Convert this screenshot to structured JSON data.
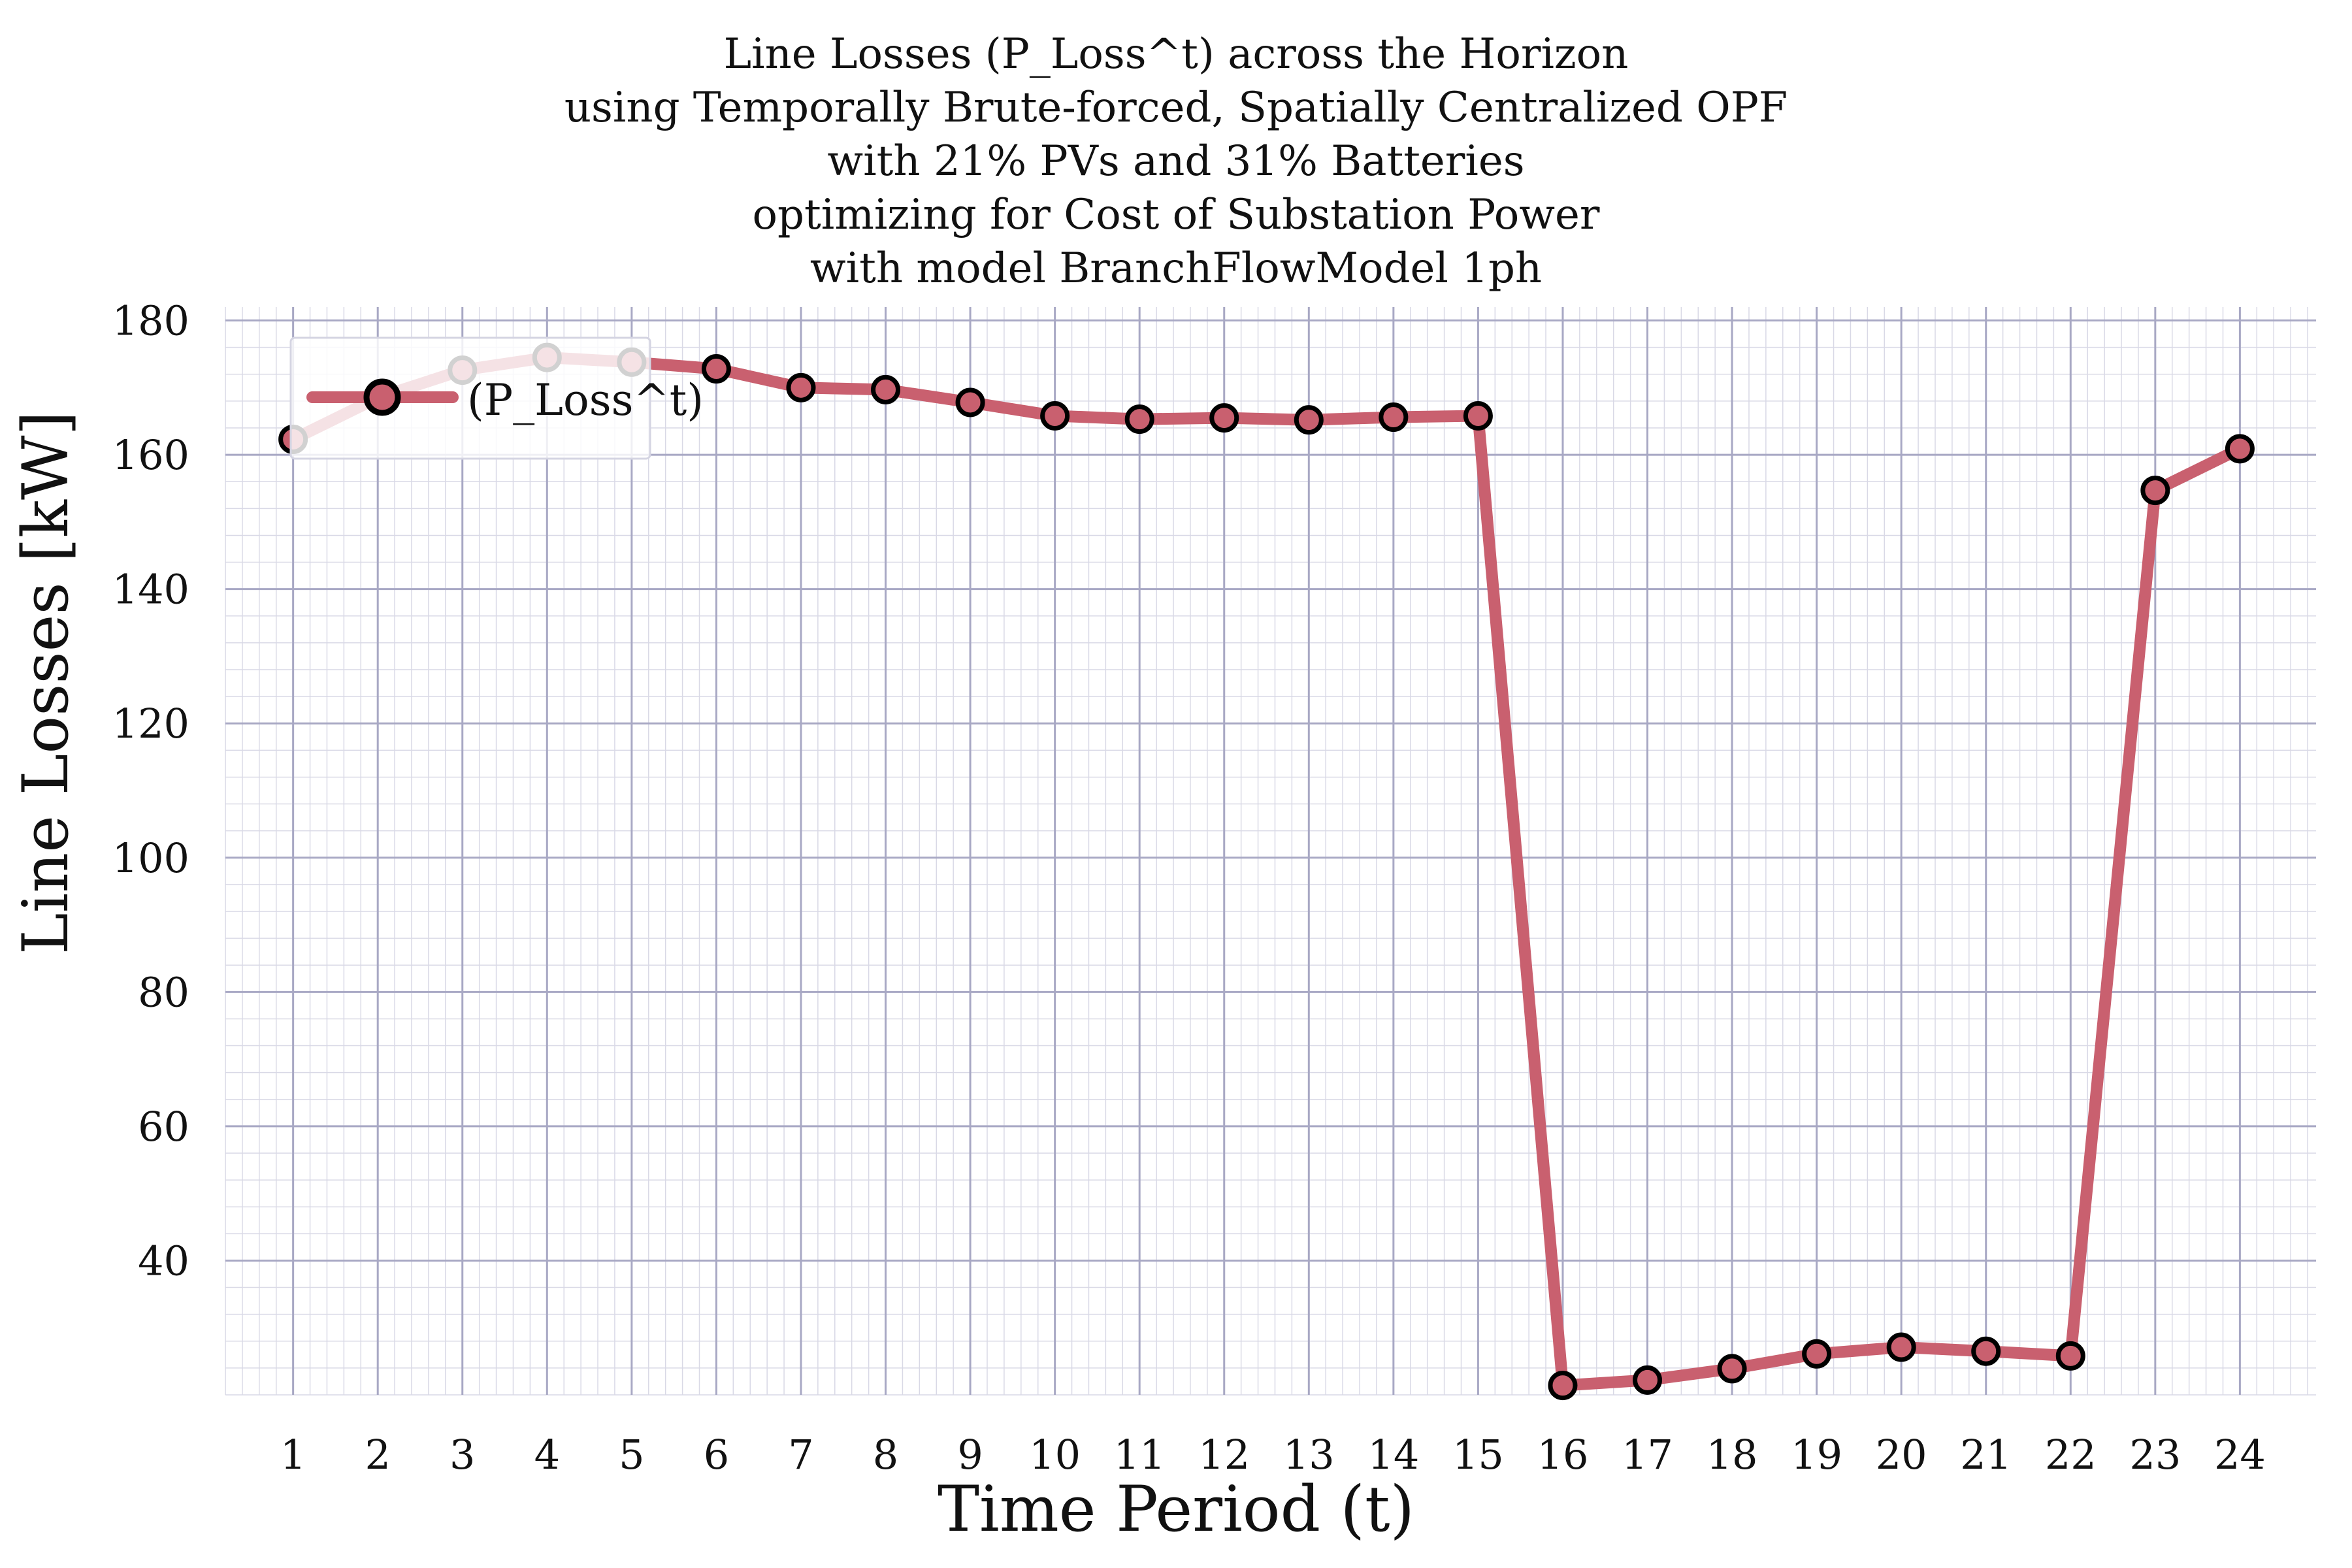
{
  "chart_data": {
    "type": "line",
    "title_lines": [
      "Line Losses (P_Loss^t) across the Horizon",
      "using Temporally Brute-forced, Spatially Centralized OPF",
      "with 21% PVs and 31% Batteries",
      "optimizing for Cost of Substation Power",
      "with model BranchFlowModel 1ph"
    ],
    "xlabel": "Time Period (t)",
    "ylabel": "Line Losses [kW]",
    "x": [
      1,
      2,
      3,
      4,
      5,
      6,
      7,
      8,
      9,
      10,
      11,
      12,
      13,
      14,
      15,
      16,
      17,
      18,
      19,
      20,
      21,
      22,
      23,
      24
    ],
    "xticks": [
      "1",
      "2",
      "3",
      "4",
      "5",
      "6",
      "7",
      "8",
      "9",
      "10",
      "11",
      "12",
      "13",
      "14",
      "15",
      "16",
      "17",
      "18",
      "19",
      "20",
      "21",
      "22",
      "23",
      "24"
    ],
    "xlim": [
      0.2,
      24.9
    ],
    "ylim": [
      20,
      182
    ],
    "yticks": [
      40,
      60,
      80,
      100,
      120,
      140,
      160,
      180
    ],
    "series": [
      {
        "name": "(P_Loss^t)",
        "values": [
          162.3,
          168.5,
          172.6,
          174.5,
          173.8,
          172.8,
          170.0,
          169.7,
          167.8,
          165.8,
          165.3,
          165.5,
          165.2,
          165.6,
          165.8,
          21.4,
          22.2,
          23.9,
          26.1,
          27.1,
          26.5,
          25.8,
          154.7,
          160.9
        ],
        "line_color": "#c9606f",
        "marker_face": "#c9606f",
        "marker_edge": "#000000"
      }
    ],
    "grid": true,
    "legend_position": "top-left"
  }
}
